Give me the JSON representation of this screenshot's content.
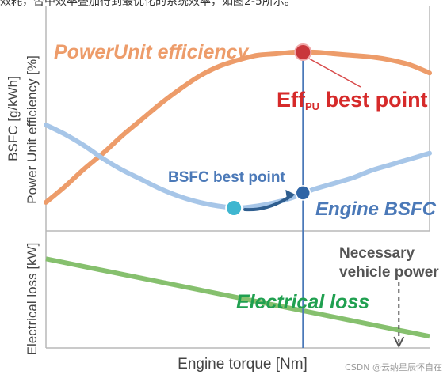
{
  "caption_fragment": "效耗，否中效率叠加得到最优化的系统效率，如图2-5所示。",
  "watermark": "CSDN @云纳星辰怀自在",
  "colors": {
    "power_unit": "#ed9c6a",
    "engine_bsfc": "#a7c6e8",
    "electrical": "#86c06e",
    "operating_line": "#4a78b8",
    "eff_point": "#c9373b",
    "bsfc_point": "#3fb6d0",
    "engine_point": "#2f65a6",
    "eff_label": "#d62a2a",
    "bsfc_label": "#4b79b8",
    "elec_label": "#20a050",
    "frame": "#b8b8b8",
    "text": "#444444"
  },
  "chart_data": [
    {
      "type": "line",
      "panel": "upper",
      "ylabel_left": "BSFC [g/kWh]",
      "ylabel_right": "Power Unit efficiency [%]",
      "xlabel": "",
      "series": [
        {
          "name": "PowerUnit efficiency",
          "x": [
            0,
            5,
            10,
            15,
            20,
            25,
            30,
            35,
            40,
            45,
            50,
            55,
            60,
            65,
            70,
            75,
            80,
            85,
            90,
            95,
            100
          ],
          "values": [
            6,
            16,
            27,
            37,
            48,
            58,
            68,
            77,
            85,
            91,
            95,
            98,
            99,
            100,
            100,
            99,
            98,
            97,
            95,
            92,
            87
          ]
        },
        {
          "name": "Engine BSFC",
          "x": [
            0,
            5,
            10,
            15,
            20,
            25,
            30,
            35,
            40,
            45,
            50,
            55,
            60,
            65,
            70,
            75,
            80,
            85,
            90,
            95,
            100
          ],
          "values": [
            55,
            50,
            44,
            37,
            31,
            26,
            21,
            17,
            14,
            12,
            11,
            12,
            14,
            17,
            21,
            24,
            27,
            31,
            34,
            37,
            40
          ]
        }
      ],
      "annotations": [
        {
          "text": "PowerUnit efficiency",
          "role": "series-label"
        },
        {
          "text": "Engine BSFC",
          "role": "series-label"
        },
        {
          "text": "BSFC best point",
          "x": 49,
          "y": 11
        },
        {
          "text_main": "Eff",
          "text_sub": "PU",
          "text_tail": " best point",
          "x": 67,
          "y": 100
        }
      ],
      "operating_point_x": 67,
      "engine_point": {
        "x": 67,
        "y": 19
      },
      "ylim": [
        0,
        105
      ],
      "xlim": [
        0,
        100
      ],
      "grid": false
    },
    {
      "type": "line",
      "panel": "lower",
      "ylabel": "Electrical loss [kW]",
      "xlabel": "Engine torque [Nm]",
      "series": [
        {
          "name": "Electrical loss",
          "x": [
            0,
            100
          ],
          "values": [
            100,
            -5
          ]
        }
      ],
      "annotations": [
        {
          "text": "Electrical loss",
          "role": "series-label"
        },
        {
          "text_line1": "Necessary",
          "text_line2": "vehicle power",
          "x": 92
        }
      ],
      "necessary_power_x": 92,
      "ylim": [
        -10,
        140
      ],
      "xlim": [
        0,
        100
      ],
      "grid": false
    }
  ]
}
